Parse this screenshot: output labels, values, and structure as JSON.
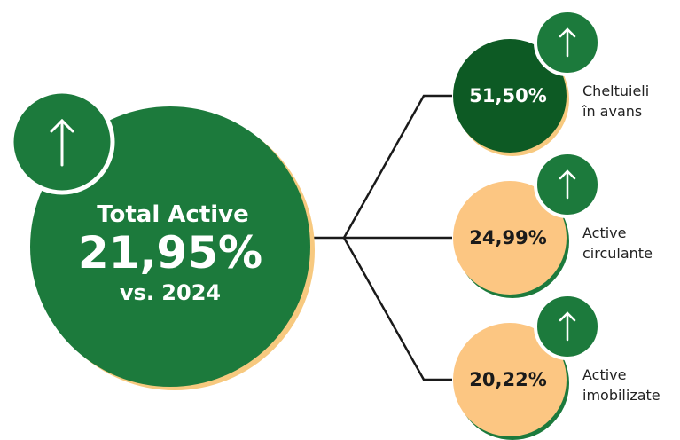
{
  "main": {
    "title": "Total Active",
    "value": "21,95%",
    "subtitle": "vs. 2024"
  },
  "items": [
    {
      "value": "51,50%",
      "label": [
        "Cheltuieli",
        "în avans"
      ]
    },
    {
      "value": "24,99%",
      "label": [
        "Active",
        "circulante"
      ]
    },
    {
      "value": "20,22%",
      "label": [
        "Active",
        "imobilizate"
      ]
    }
  ]
}
